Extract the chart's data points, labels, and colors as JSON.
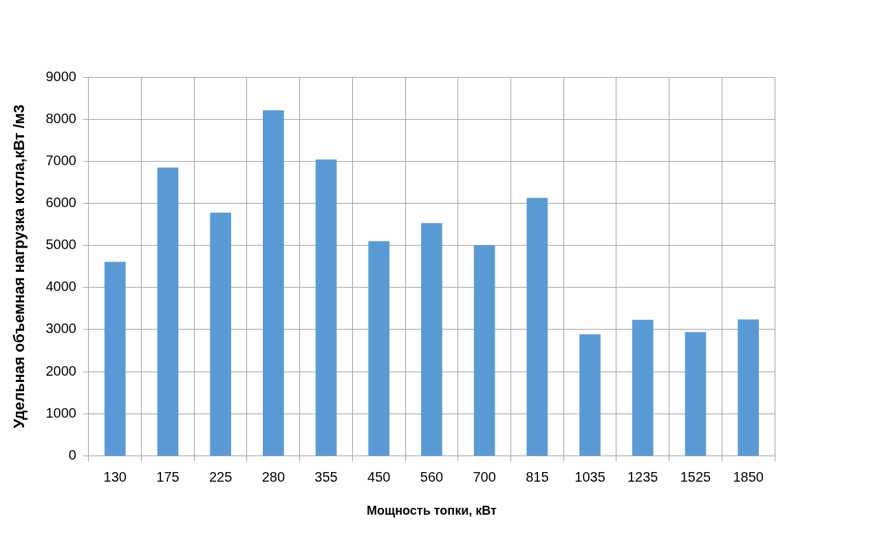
{
  "chart_data": {
    "type": "bar",
    "xlabel": "Мощность топки, кВт",
    "ylabel": "Удельная объемная нагрузка котла,кВт /м3",
    "categories": [
      "130",
      "175",
      "225",
      "280",
      "355",
      "450",
      "560",
      "700",
      "815",
      "1035",
      "1235",
      "1525",
      "1850"
    ],
    "values": [
      4610,
      6850,
      5780,
      8210,
      7040,
      5100,
      5530,
      5000,
      6130,
      2890,
      3230,
      2940,
      3240
    ],
    "color": "#5b9bd5",
    "ylim": [
      0,
      9000
    ],
    "yticks": [
      0,
      1000,
      2000,
      3000,
      4000,
      5000,
      6000,
      7000,
      8000,
      9000
    ],
    "grid": true,
    "legend": false
  }
}
